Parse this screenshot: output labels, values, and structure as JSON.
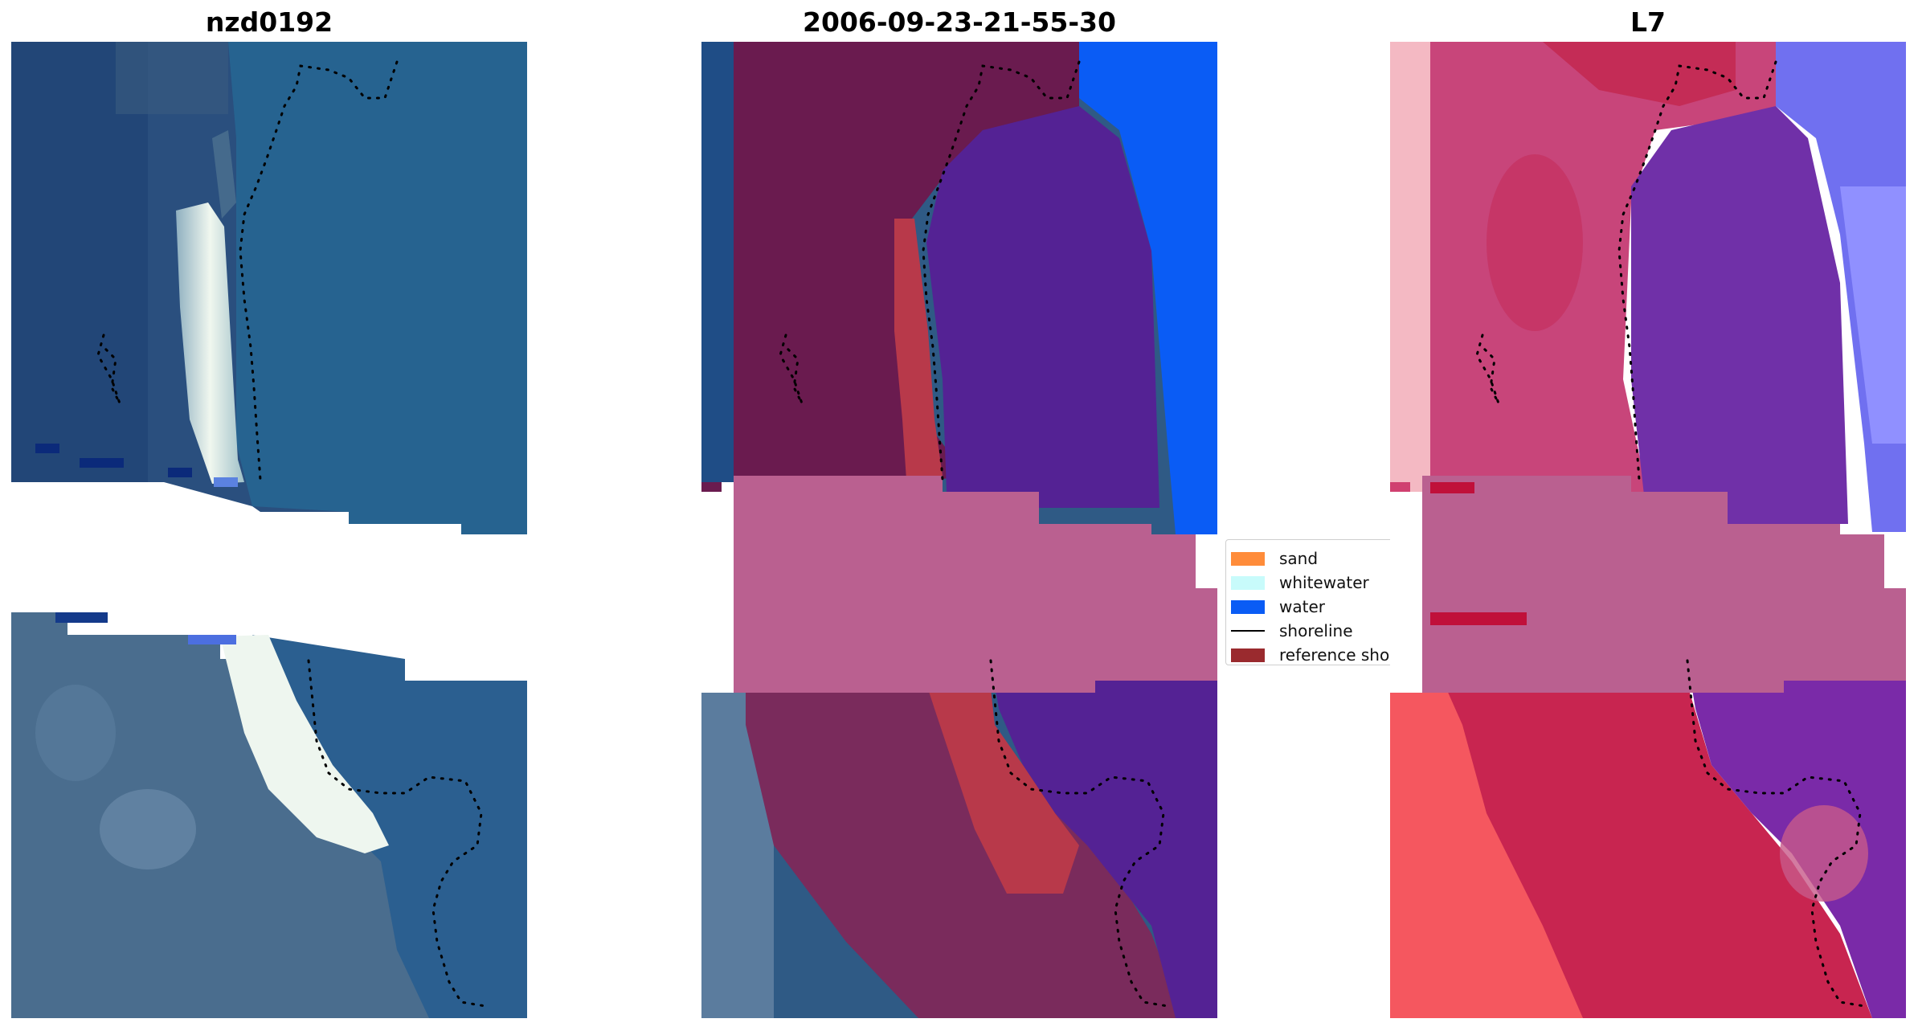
{
  "titles": {
    "left": "nzd0192",
    "center": "2006-09-23-21-55-30",
    "right": "L7"
  },
  "legend": {
    "items": [
      {
        "label": "sand",
        "color": "#ff8c3a"
      },
      {
        "label": "whitewater",
        "color": "#c8fbfb"
      },
      {
        "label": "water",
        "color": "#0a5cf5"
      },
      {
        "label": "shoreline",
        "color": "#000000"
      },
      {
        "label": "reference shoreline",
        "color": "#9a2a2e"
      }
    ]
  },
  "colors": {
    "ocean_rgb": "#1f4f86",
    "ocean_rgb_light": "#2a6a95",
    "beach_white": "#e8f2ea",
    "land_rgb": "#4d6f90",
    "class_land": "#6a1b4f",
    "class_water_near": "#542294",
    "class_water_far": "#0a5cf5",
    "class_sand_ref": "#b8394a",
    "nodata_overlay": "#ba6090",
    "mndwi_land": "#c83a6a",
    "mndwi_water": "#7030a8",
    "mndwi_bright_water": "#8080ff",
    "mndwi_red": "#f55060"
  }
}
